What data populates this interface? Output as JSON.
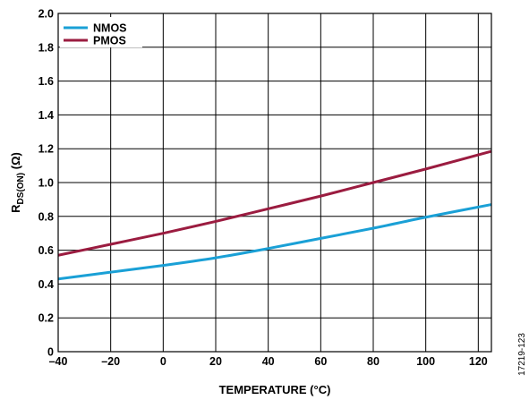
{
  "chart_data": {
    "type": "line",
    "xlabel": "TEMPERATURE (°C)",
    "ylabel_main": "R",
    "ylabel_sub": "DS(ON)",
    "ylabel_unit": " (Ω)",
    "xlim": [
      -40,
      125
    ],
    "ylim": [
      0,
      2.0
    ],
    "x_ticks": [
      -40,
      -20,
      0,
      20,
      40,
      60,
      80,
      100,
      120
    ],
    "x_tick_labels": [
      "–40",
      "–20",
      "0",
      "20",
      "40",
      "60",
      "80",
      "100",
      "120"
    ],
    "y_ticks": [
      0,
      0.2,
      0.4,
      0.6,
      0.8,
      1.0,
      1.2,
      1.4,
      1.6,
      1.8,
      2.0
    ],
    "y_tick_labels": [
      "0",
      "0.2",
      "0.4",
      "0.6",
      "0.8",
      "1.0",
      "1.2",
      "1.4",
      "1.6",
      "1.8",
      "2.0"
    ],
    "grid": true,
    "legend_position": "top-left",
    "series": [
      {
        "name": "NMOS",
        "color": "#1aa0d6",
        "x": [
          -40,
          -20,
          0,
          20,
          40,
          60,
          80,
          100,
          125
        ],
        "y": [
          0.43,
          0.47,
          0.51,
          0.555,
          0.61,
          0.67,
          0.73,
          0.795,
          0.87
        ]
      },
      {
        "name": "PMOS",
        "color": "#9b1c40",
        "x": [
          -40,
          -20,
          0,
          20,
          40,
          60,
          80,
          100,
          125
        ],
        "y": [
          0.57,
          0.635,
          0.7,
          0.77,
          0.845,
          0.92,
          1.0,
          1.08,
          1.185
        ]
      }
    ]
  },
  "figure_id": "17219-123"
}
